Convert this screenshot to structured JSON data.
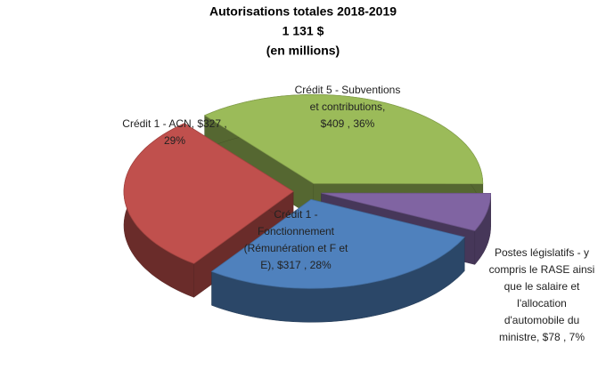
{
  "chart_data": {
    "type": "pie",
    "title": "Autorisations totales 2018-2019",
    "subtitle": [
      "1 131 $",
      "(en millions)"
    ],
    "values": [
      409,
      78,
      317,
      327
    ],
    "percents": [
      36,
      7,
      28,
      29
    ],
    "value_labels": [
      [
        "Crédit 5 - Subventions",
        "et contributions,",
        "$409 , 36%"
      ],
      [
        "Postes législatifs - y",
        "compris le RASE ainsi",
        "que le salaire et",
        "l'allocation",
        "d'automobile du",
        "ministre,  $78 , 7%"
      ],
      [
        "Crédit 1 -",
        "Fonctionnement",
        "(Rémunération et F et",
        "E),  $317 , 28%"
      ],
      [
        "Crédit 1 - ACN,  $327 ,",
        "29%"
      ]
    ],
    "colors": [
      "#9bbb59",
      "#8064a2",
      "#4f81bd",
      "#c0504d"
    ]
  }
}
